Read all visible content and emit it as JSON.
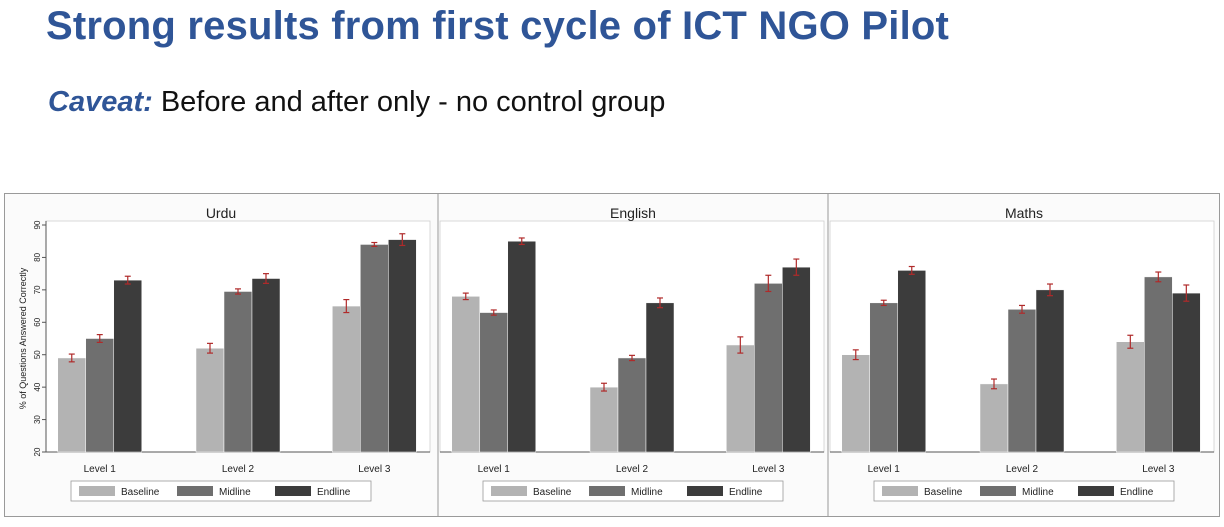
{
  "slide": {
    "title": "Strong results from first cycle of ICT NGO Pilot",
    "caveat_label": "Caveat:",
    "caveat_text": " Before and after only - no control group"
  },
  "colors": {
    "title": "#2f5597",
    "Baseline": "#b3b3b3",
    "Midline": "#6f6f6f",
    "Endline": "#3c3c3c",
    "error_bar": "#b02a2a"
  },
  "chart_data": [
    {
      "type": "bar",
      "title": "Urdu",
      "ylabel": "% of Questions Answered Correctly",
      "ylim": [
        20,
        90
      ],
      "yticks": [
        20,
        30,
        40,
        50,
        60,
        70,
        80,
        90
      ],
      "categories": [
        "Level 1",
        "Level 2",
        "Level 3"
      ],
      "series": [
        {
          "name": "Baseline",
          "values": [
            49,
            52,
            65
          ],
          "errors": [
            1.2,
            1.5,
            2.0
          ]
        },
        {
          "name": "Midline",
          "values": [
            55,
            69.5,
            84
          ],
          "errors": [
            1.2,
            0.8,
            0.6
          ]
        },
        {
          "name": "Endline",
          "values": [
            73,
            73.5,
            85.5
          ],
          "errors": [
            1.2,
            1.5,
            1.8
          ]
        }
      ],
      "legend": "bottom"
    },
    {
      "type": "bar",
      "title": "English",
      "ylabel": "",
      "ylim": [
        20,
        90
      ],
      "categories": [
        "Level 1",
        "Level 2",
        "Level 3"
      ],
      "series": [
        {
          "name": "Baseline",
          "values": [
            68,
            40,
            53
          ],
          "errors": [
            1.0,
            1.2,
            2.5
          ]
        },
        {
          "name": "Midline",
          "values": [
            63,
            49,
            72
          ],
          "errors": [
            0.8,
            0.8,
            2.5
          ]
        },
        {
          "name": "Endline",
          "values": [
            85,
            66,
            77
          ],
          "errors": [
            1.0,
            1.5,
            2.5
          ]
        }
      ],
      "legend": "bottom"
    },
    {
      "type": "bar",
      "title": "Maths",
      "ylabel": "",
      "ylim": [
        20,
        90
      ],
      "categories": [
        "Level 1",
        "Level 2",
        "Level 3"
      ],
      "series": [
        {
          "name": "Baseline",
          "values": [
            50,
            41,
            54
          ],
          "errors": [
            1.5,
            1.5,
            2.0
          ]
        },
        {
          "name": "Midline",
          "values": [
            66,
            64,
            74
          ],
          "errors": [
            0.8,
            1.2,
            1.5
          ]
        },
        {
          "name": "Endline",
          "values": [
            76,
            70,
            69
          ],
          "errors": [
            1.2,
            1.8,
            2.5
          ]
        }
      ],
      "legend": "bottom"
    }
  ]
}
